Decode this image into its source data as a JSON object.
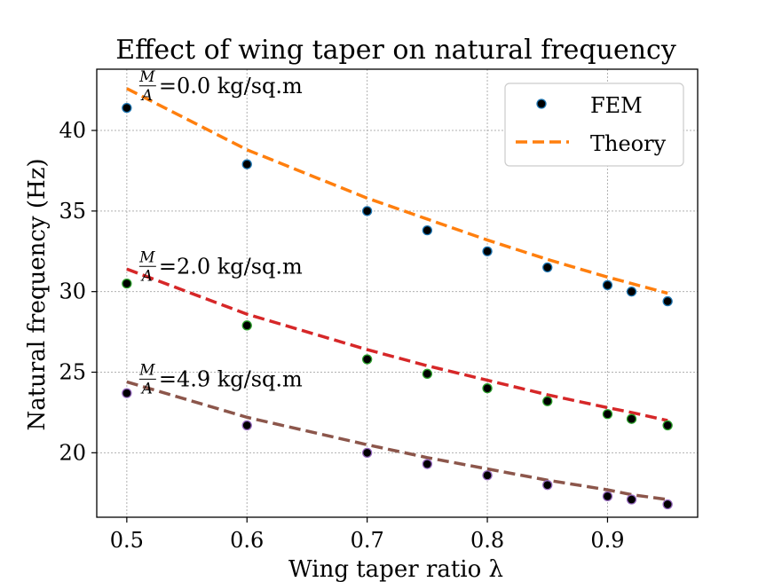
{
  "chart_data": {
    "type": "line",
    "title": "Effect of wing taper on natural frequency",
    "xlabel": "Wing taper ratio λ",
    "ylabel": "Natural frequency (Hz)",
    "xlim": [
      0.475,
      0.975
    ],
    "ylim": [
      16.0,
      43.8
    ],
    "x_ticks": [
      0.5,
      0.6,
      0.7,
      0.8,
      0.9
    ],
    "x_tick_labels": [
      "0.5",
      "0.6",
      "0.7",
      "0.8",
      "0.9"
    ],
    "y_ticks": [
      20,
      25,
      30,
      35,
      40
    ],
    "y_tick_labels": [
      "20",
      "25",
      "30",
      "35",
      "40"
    ],
    "grid": true,
    "legend": {
      "position": "top-right",
      "entries": [
        {
          "label": "FEM",
          "style": "marker"
        },
        {
          "label": "Theory",
          "style": "dashed-line"
        }
      ]
    },
    "x": [
      0.5,
      0.6,
      0.7,
      0.75,
      0.8,
      0.85,
      0.9,
      0.92,
      0.95
    ],
    "groups": [
      {
        "annotation": {
          "frac_num": "M",
          "frac_den": "A",
          "text": "=0.0 kg/sq.m"
        },
        "fem": [
          41.4,
          37.9,
          35.0,
          33.8,
          32.5,
          31.5,
          30.4,
          30.0,
          29.4
        ],
        "theory": [
          42.6,
          38.8,
          35.8,
          34.5,
          33.2,
          32.0,
          30.9,
          30.5,
          29.9
        ],
        "marker_edge": "#1f77b4",
        "line_color": "#ff7f0e"
      },
      {
        "annotation": {
          "frac_num": "M",
          "frac_den": "A",
          "text": "=2.0 kg/sq.m"
        },
        "fem": [
          30.5,
          27.9,
          25.8,
          24.9,
          24.0,
          23.2,
          22.4,
          22.1,
          21.7
        ],
        "theory": [
          31.4,
          28.6,
          26.4,
          25.4,
          24.5,
          23.6,
          22.8,
          22.5,
          22.0
        ],
        "marker_edge": "#2ca02c",
        "line_color": "#d62728"
      },
      {
        "annotation": {
          "frac_num": "M",
          "frac_den": "A",
          "text": "=4.9 kg/sq.m"
        },
        "fem": [
          23.7,
          21.7,
          20.0,
          19.3,
          18.6,
          18.0,
          17.3,
          17.1,
          16.8
        ],
        "theory": [
          24.4,
          22.2,
          20.5,
          19.7,
          19.0,
          18.3,
          17.7,
          17.4,
          17.1
        ],
        "marker_edge": "#9467bd",
        "line_color": "#8c564b"
      }
    ],
    "marker_face": "#000000",
    "legend_marker_edge": "#1f77b4",
    "legend_line_color": "#ff7f0e"
  }
}
